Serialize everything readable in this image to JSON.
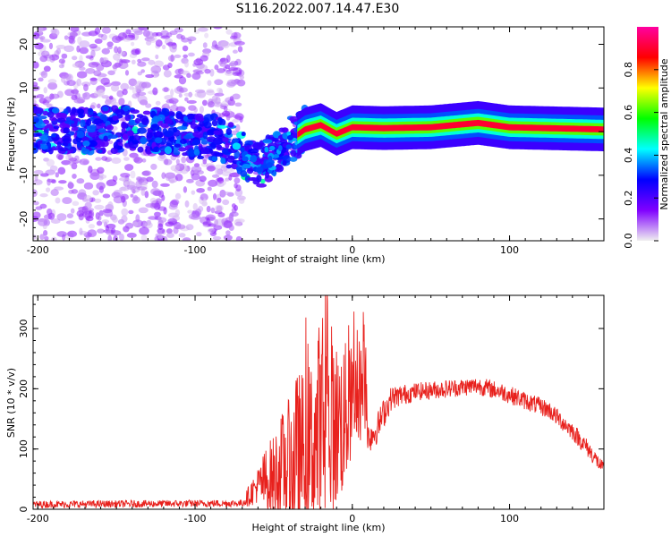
{
  "title": "S116.2022.007.14.47.E30",
  "colors": {
    "snr_line": "#e8211d",
    "axis": "#000000",
    "background": "#ffffff"
  },
  "chart_data": [
    {
      "type": "heatmap",
      "xlabel": "Height of straight line (km)",
      "ylabel": "Frequency (Hz)",
      "xlim": [
        -203,
        160
      ],
      "ylim": [
        -25,
        24
      ],
      "x_ticks": [
        "-200",
        "-100",
        "0",
        "100"
      ],
      "y_ticks": [
        "20",
        "10",
        "0",
        "-10",
        "-20"
      ],
      "grid": false,
      "colorbar": {
        "label": "Normalized spectral amplitude",
        "range": [
          0,
          1
        ],
        "ticks": [
          "0.0",
          "0.2",
          "0.4",
          "0.6",
          "0.8"
        ],
        "colormap": [
          "#f0f0f0",
          "#8000ff",
          "#0000ff",
          "#00ffff",
          "#00ff00",
          "#ffff00",
          "#ff0000",
          "#ff00a0"
        ]
      },
      "ridge": [
        {
          "x": -203,
          "f": 0.5
        },
        {
          "x": -170,
          "f": 0
        },
        {
          "x": -140,
          "f": 0.8
        },
        {
          "x": -110,
          "f": -0.5
        },
        {
          "x": -85,
          "f": -1.5
        },
        {
          "x": -70,
          "f": -5
        },
        {
          "x": -60,
          "f": -8
        },
        {
          "x": -50,
          "f": -5
        },
        {
          "x": -40,
          "f": -2
        },
        {
          "x": -30,
          "f": 0.5
        },
        {
          "x": -20,
          "f": 1.5
        },
        {
          "x": -10,
          "f": -0.5
        },
        {
          "x": 0,
          "f": 1
        },
        {
          "x": 20,
          "f": 0.8
        },
        {
          "x": 50,
          "f": 1
        },
        {
          "x": 80,
          "f": 2
        },
        {
          "x": 100,
          "f": 1
        },
        {
          "x": 160,
          "f": 0.5
        }
      ],
      "noise_region_x": [
        -203,
        -70
      ]
    },
    {
      "type": "line",
      "xlabel": "Height of straight line (km)",
      "ylabel": "SNR (10 * v/v)",
      "xlim": [
        -203,
        160
      ],
      "ylim": [
        0,
        355
      ],
      "x_ticks": [
        "-200",
        "-100",
        "0",
        "100"
      ],
      "y_ticks": [
        "0",
        "100",
        "200",
        "300"
      ],
      "grid": false,
      "envelope": [
        {
          "x": -203,
          "base": 8,
          "amp": 6
        },
        {
          "x": -70,
          "base": 10,
          "amp": 6
        },
        {
          "x": -65,
          "base": 25,
          "amp": 20
        },
        {
          "x": -60,
          "base": 40,
          "amp": 30
        },
        {
          "x": -55,
          "base": 45,
          "amp": 60
        },
        {
          "x": -50,
          "base": 55,
          "amp": 70
        },
        {
          "x": -45,
          "base": 70,
          "amp": 90
        },
        {
          "x": -40,
          "base": 75,
          "amp": 110
        },
        {
          "x": -35,
          "base": 80,
          "amp": 150
        },
        {
          "x": -30,
          "base": 100,
          "amp": 130
        },
        {
          "x": -25,
          "base": 110,
          "amp": 150
        },
        {
          "x": -22,
          "base": 120,
          "amp": 200
        },
        {
          "x": -18,
          "base": 120,
          "amp": 160
        },
        {
          "x": -10,
          "base": 140,
          "amp": 140
        },
        {
          "x": -5,
          "base": 150,
          "amp": 130
        },
        {
          "x": 0,
          "base": 180,
          "amp": 90
        },
        {
          "x": 5,
          "base": 200,
          "amp": 90
        },
        {
          "x": 9,
          "base": 210,
          "amp": 80
        },
        {
          "x": 10,
          "base": 120,
          "amp": 30
        },
        {
          "x": 15,
          "base": 130,
          "amp": 25
        },
        {
          "x": 20,
          "base": 160,
          "amp": 25
        },
        {
          "x": 25,
          "base": 185,
          "amp": 20
        },
        {
          "x": 40,
          "base": 195,
          "amp": 15
        },
        {
          "x": 60,
          "base": 200,
          "amp": 15
        },
        {
          "x": 80,
          "base": 205,
          "amp": 15
        },
        {
          "x": 95,
          "base": 195,
          "amp": 15
        },
        {
          "x": 110,
          "base": 180,
          "amp": 15
        },
        {
          "x": 125,
          "base": 165,
          "amp": 15
        },
        {
          "x": 140,
          "base": 130,
          "amp": 15
        },
        {
          "x": 150,
          "base": 100,
          "amp": 15
        },
        {
          "x": 160,
          "base": 65,
          "amp": 12
        }
      ],
      "samples": 1400
    }
  ]
}
